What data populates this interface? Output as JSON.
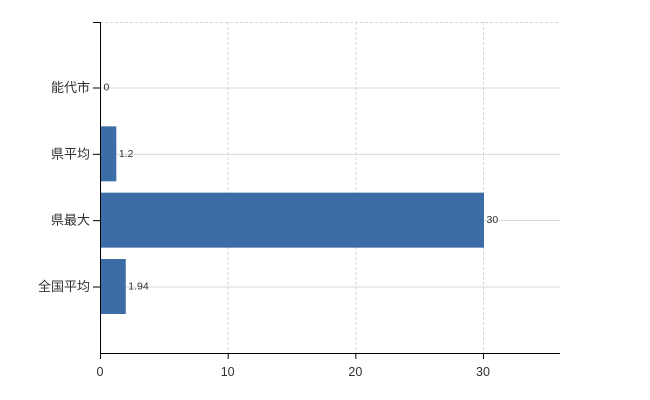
{
  "chart_data": {
    "type": "bar",
    "orientation": "horizontal",
    "title": "",
    "xlabel": "",
    "ylabel": "",
    "categories": [
      "能代市",
      "県平均",
      "県最大",
      "全国平均"
    ],
    "values": [
      0,
      1.2,
      30,
      1.94
    ],
    "value_labels": [
      "0",
      "1.2",
      "30",
      "1.94"
    ],
    "x_ticks": [
      0,
      10,
      20,
      30
    ],
    "x_tick_labels": [
      "0",
      "10",
      "20",
      "30"
    ],
    "xlim": [
      0,
      36
    ],
    "legend": "none",
    "grid": {
      "vertical": "dashed-at-x-ticks",
      "horizontal": "solid-at-category-centers",
      "top_border": "dashed"
    },
    "colors": {
      "bar": "#3d6da7",
      "axis": "#000000",
      "grid_horizontal": "#d4dcd2",
      "grid_vertical": "#d9d2d7",
      "top_border": "#d9d2d7",
      "text": "#303030",
      "background": "#ffffff"
    }
  }
}
